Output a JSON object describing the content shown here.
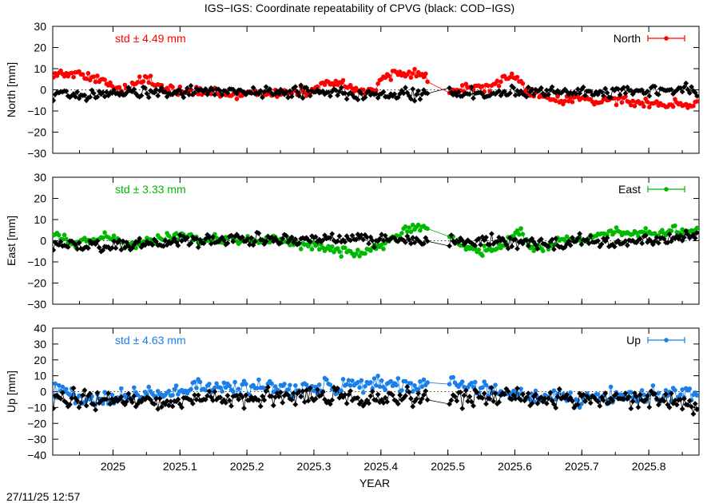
{
  "title": "IGS−IGS: Coordinate repeatability of CPVG (black: COD−IGS)",
  "footer": "27/11/25 12:57",
  "xlabel": "YEAR",
  "chart_data": {
    "type": "scatter",
    "xlim": [
      2024.91,
      2025.875
    ],
    "xticks": [
      {
        "value": 2025.0,
        "label": "2025"
      },
      {
        "value": 2025.1,
        "label": "2025.1"
      },
      {
        "value": 2025.2,
        "label": "2025.2"
      },
      {
        "value": 2025.3,
        "label": "2025.3"
      },
      {
        "value": 2025.4,
        "label": "2025.4"
      },
      {
        "value": 2025.5,
        "label": "2025.5"
      },
      {
        "value": 2025.6,
        "label": "2025.6"
      },
      {
        "value": 2025.7,
        "label": "2025.7"
      },
      {
        "value": 2025.8,
        "label": "2025.8"
      }
    ],
    "gap": [
      2025.47,
      2025.5
    ],
    "panels": [
      {
        "id": "north",
        "ylabel": "North [mm]",
        "ylim": [
          -30,
          30
        ],
        "yticks": [
          30,
          20,
          10,
          0,
          -10,
          -20,
          -30
        ],
        "yticklabels": [
          "30",
          "20",
          "10",
          "0",
          "−10",
          "−20",
          "−30"
        ],
        "legend": "North",
        "std_label": "std ± 4.49 mm",
        "color": "#ff0000",
        "trend": [
          [
            2024.91,
            7.5
          ],
          [
            2024.93,
            8
          ],
          [
            2024.96,
            6
          ],
          [
            2024.99,
            4
          ],
          [
            2025.0,
            2
          ],
          [
            2025.02,
            0
          ],
          [
            2025.04,
            5
          ],
          [
            2025.05,
            5
          ],
          [
            2025.06,
            3
          ],
          [
            2025.08,
            0
          ],
          [
            2025.1,
            -0.5
          ],
          [
            2025.12,
            -1
          ],
          [
            2025.15,
            -1.5
          ],
          [
            2025.18,
            -2
          ],
          [
            2025.21,
            -2
          ],
          [
            2025.25,
            -1
          ],
          [
            2025.28,
            -1
          ],
          [
            2025.3,
            -1
          ],
          [
            2025.32,
            4
          ],
          [
            2025.34,
            3
          ],
          [
            2025.36,
            0
          ],
          [
            2025.38,
            -1
          ],
          [
            2025.39,
            0
          ],
          [
            2025.4,
            4
          ],
          [
            2025.42,
            8
          ],
          [
            2025.44,
            7
          ],
          [
            2025.46,
            7.5
          ],
          [
            2025.47,
            6
          ],
          [
            2025.5,
            -2
          ],
          [
            2025.51,
            0
          ],
          [
            2025.52,
            2
          ],
          [
            2025.54,
            1
          ],
          [
            2025.56,
            1
          ],
          [
            2025.58,
            5
          ],
          [
            2025.6,
            7
          ],
          [
            2025.61,
            3
          ],
          [
            2025.62,
            -2
          ],
          [
            2025.64,
            -3
          ],
          [
            2025.66,
            -5
          ],
          [
            2025.68,
            -5
          ],
          [
            2025.7,
            -4
          ],
          [
            2025.72,
            -5
          ],
          [
            2025.74,
            -4
          ],
          [
            2025.76,
            -5
          ],
          [
            2025.78,
            -6
          ],
          [
            2025.8,
            -6
          ],
          [
            2025.82,
            -7
          ],
          [
            2025.84,
            -6
          ],
          [
            2025.86,
            -7
          ],
          [
            2025.875,
            -7
          ]
        ],
        "noise": 1.4,
        "black_trend": [
          [
            2024.91,
            -2
          ],
          [
            2024.95,
            -3
          ],
          [
            2025.0,
            -1
          ],
          [
            2025.1,
            -1
          ],
          [
            2025.2,
            -1
          ],
          [
            2025.3,
            -1
          ],
          [
            2025.4,
            -2
          ],
          [
            2025.5,
            -2
          ],
          [
            2025.6,
            -1
          ],
          [
            2025.7,
            -1
          ],
          [
            2025.8,
            -1
          ],
          [
            2025.875,
            0
          ]
        ],
        "black_noise": 1.6
      },
      {
        "id": "east",
        "ylabel": "East [mm]",
        "ylim": [
          -30,
          30
        ],
        "yticks": [
          30,
          20,
          10,
          0,
          -10,
          -20,
          -30
        ],
        "yticklabels": [
          "30",
          "20",
          "10",
          "0",
          "−10",
          "−20",
          "−30"
        ],
        "legend": "East",
        "std_label": "std ± 3.33 mm",
        "color": "#00b800",
        "trend": [
          [
            2024.91,
            4
          ],
          [
            2024.92,
            4
          ],
          [
            2024.94,
            -2
          ],
          [
            2024.96,
            0
          ],
          [
            2024.99,
            2
          ],
          [
            2025.0,
            2
          ],
          [
            2025.02,
            -3
          ],
          [
            2025.04,
            -1
          ],
          [
            2025.06,
            0
          ],
          [
            2025.09,
            3
          ],
          [
            2025.11,
            2
          ],
          [
            2025.13,
            0
          ],
          [
            2025.15,
            1
          ],
          [
            2025.18,
            1
          ],
          [
            2025.21,
            0
          ],
          [
            2025.25,
            0
          ],
          [
            2025.28,
            -1
          ],
          [
            2025.3,
            -2
          ],
          [
            2025.32,
            -4
          ],
          [
            2025.34,
            -5
          ],
          [
            2025.36,
            -6
          ],
          [
            2025.38,
            -5
          ],
          [
            2025.4,
            -2
          ],
          [
            2025.42,
            2
          ],
          [
            2025.44,
            5
          ],
          [
            2025.46,
            7
          ],
          [
            2025.47,
            7
          ],
          [
            2025.5,
            3
          ],
          [
            2025.52,
            -2
          ],
          [
            2025.54,
            -4
          ],
          [
            2025.56,
            -5
          ],
          [
            2025.58,
            -3
          ],
          [
            2025.6,
            3
          ],
          [
            2025.61,
            5
          ],
          [
            2025.62,
            -2
          ],
          [
            2025.63,
            -4
          ],
          [
            2025.65,
            -3
          ],
          [
            2025.67,
            0
          ],
          [
            2025.69,
            1
          ],
          [
            2025.71,
            1
          ],
          [
            2025.73,
            3
          ],
          [
            2025.75,
            5
          ],
          [
            2025.77,
            3
          ],
          [
            2025.8,
            4
          ],
          [
            2025.82,
            5
          ],
          [
            2025.84,
            5
          ],
          [
            2025.86,
            4
          ],
          [
            2025.875,
            5
          ]
        ],
        "noise": 1.3,
        "black_trend": [
          [
            2024.91,
            -1
          ],
          [
            2024.95,
            -2
          ],
          [
            2025.0,
            -2
          ],
          [
            2025.05,
            -2
          ],
          [
            2025.1,
            0
          ],
          [
            2025.2,
            0
          ],
          [
            2025.3,
            1
          ],
          [
            2025.4,
            0
          ],
          [
            2025.5,
            0
          ],
          [
            2025.6,
            -1
          ],
          [
            2025.65,
            -2
          ],
          [
            2025.7,
            0
          ],
          [
            2025.75,
            -1
          ],
          [
            2025.8,
            0
          ],
          [
            2025.875,
            2
          ]
        ],
        "black_noise": 1.8
      },
      {
        "id": "up",
        "ylabel": "Up [mm]",
        "ylim": [
          -40,
          40
        ],
        "yticks": [
          40,
          30,
          20,
          10,
          0,
          -10,
          -20,
          -30,
          -40
        ],
        "yticklabels": [
          "40",
          "30",
          "20",
          "10",
          "0",
          "−10",
          "−20",
          "−30",
          "−40"
        ],
        "legend": "Up",
        "std_label": "std ± 4.63 mm",
        "color": "#1a7fe8",
        "trend": [
          [
            2024.91,
            0
          ],
          [
            2024.93,
            2
          ],
          [
            2024.95,
            -6
          ],
          [
            2024.97,
            -5
          ],
          [
            2025.0,
            -3
          ],
          [
            2025.05,
            -3
          ],
          [
            2025.1,
            0
          ],
          [
            2025.12,
            1
          ],
          [
            2025.15,
            3
          ],
          [
            2025.2,
            2
          ],
          [
            2025.25,
            2
          ],
          [
            2025.3,
            2
          ],
          [
            2025.35,
            3
          ],
          [
            2025.38,
            5
          ],
          [
            2025.4,
            4
          ],
          [
            2025.43,
            5
          ],
          [
            2025.45,
            3
          ],
          [
            2025.47,
            7
          ],
          [
            2025.5,
            8
          ],
          [
            2025.52,
            2
          ],
          [
            2025.55,
            1
          ],
          [
            2025.6,
            -1
          ],
          [
            2025.65,
            -3
          ],
          [
            2025.7,
            -5
          ],
          [
            2025.75,
            -3
          ],
          [
            2025.8,
            -2
          ],
          [
            2025.85,
            0
          ],
          [
            2025.875,
            0
          ]
        ],
        "noise": 3.2,
        "black_trend": [
          [
            2024.91,
            -4
          ],
          [
            2025.0,
            -6
          ],
          [
            2025.1,
            -6
          ],
          [
            2025.2,
            -4
          ],
          [
            2025.3,
            -2
          ],
          [
            2025.4,
            -5
          ],
          [
            2025.5,
            -3
          ],
          [
            2025.6,
            -3
          ],
          [
            2025.7,
            -5
          ],
          [
            2025.8,
            -5
          ],
          [
            2025.875,
            -8
          ]
        ],
        "black_noise": 3.6
      }
    ]
  }
}
